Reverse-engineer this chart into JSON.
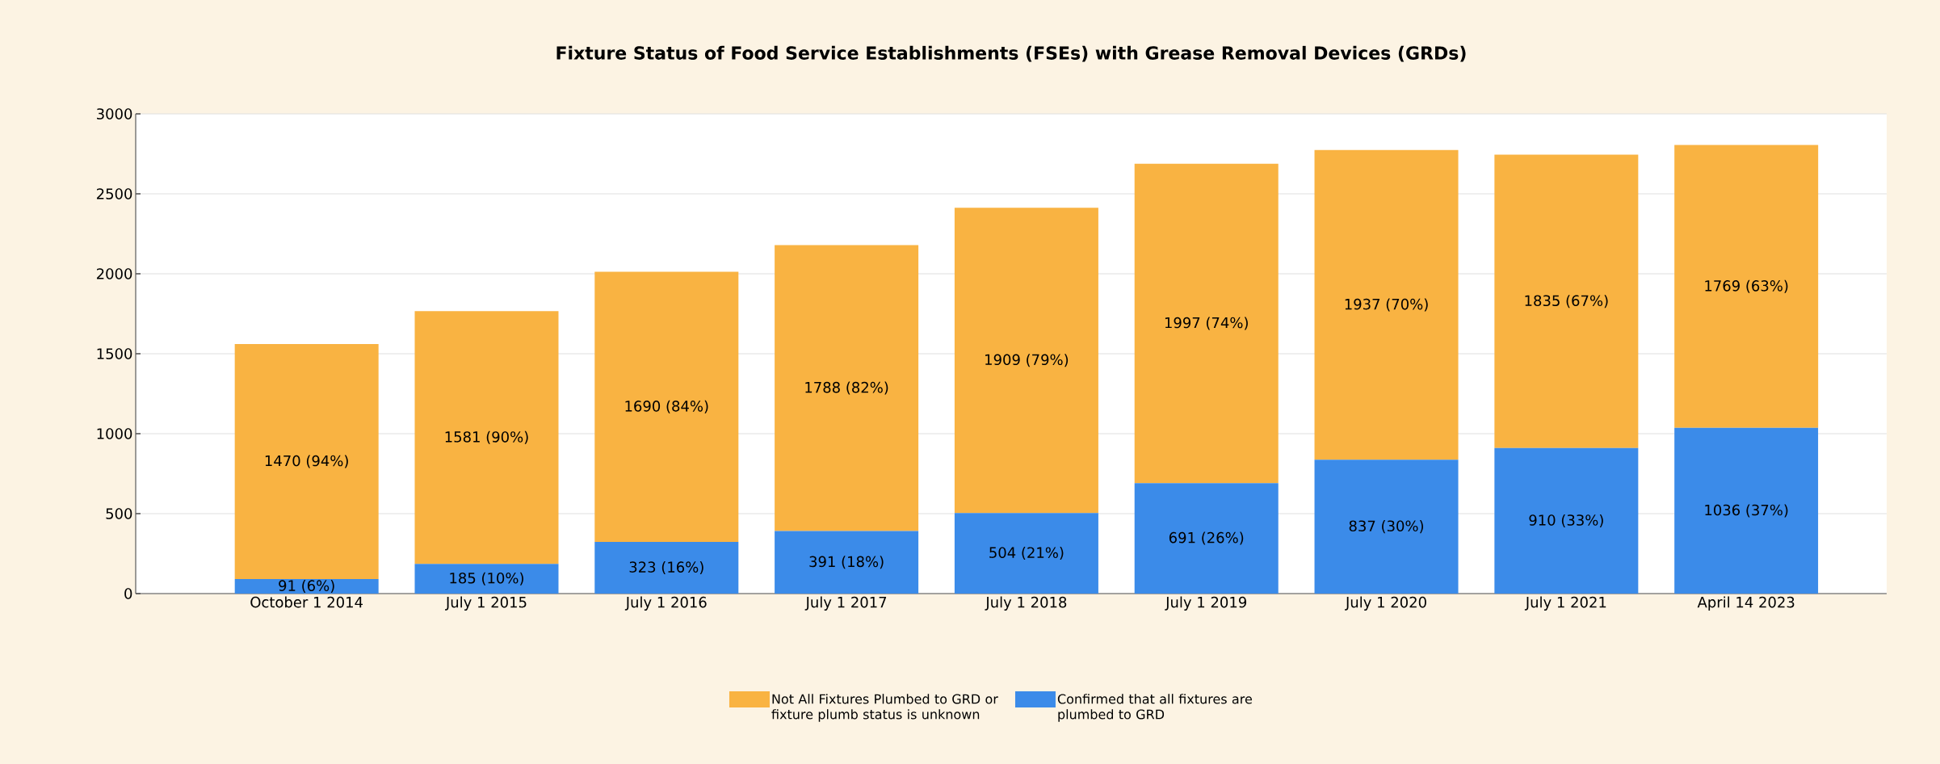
{
  "chart_data": {
    "type": "bar",
    "title": "Fixture Status of Food Service Establishments (FSEs) with Grease Removal Devices (GRDs)",
    "categories": [
      "October 1 2014",
      "July 1 2015",
      "July 1 2016",
      "July 1 2017",
      "July 1 2018",
      "July 1 2019",
      "July 1 2020",
      "July 1 2021",
      "April 14 2023"
    ],
    "stacked": true,
    "series": [
      {
        "name": "Confirmed that all fixtures are plumbed to GRD",
        "color": "#3b8be9",
        "values": [
          91,
          185,
          323,
          391,
          504,
          691,
          837,
          910,
          1036
        ],
        "value_labels": [
          "91 (6%)",
          "185 (10%)",
          "323 (16%)",
          "391 (18%)",
          "504 (21%)",
          "691 (26%)",
          "837 (30%)",
          "910 (33%)",
          "1036 (37%)"
        ]
      },
      {
        "name": "Not All Fixtures Plumbed to GRD or fixture plumb status is unknown",
        "color": "#f9b342",
        "values": [
          1470,
          1581,
          1690,
          1788,
          1909,
          1997,
          1937,
          1835,
          1769
        ],
        "value_labels": [
          "1470 (94%)",
          "1581 (90%)",
          "1690 (84%)",
          "1788 (82%)",
          "1909 (79%)",
          "1997 (74%)",
          "1937 (70%)",
          "1835 (67%)",
          "1769 (63%)"
        ]
      }
    ],
    "ylim": [
      0,
      3000
    ],
    "yticks": [
      0,
      500,
      1000,
      1500,
      2000,
      2500,
      3000
    ],
    "grid": "y",
    "legend": "bottom"
  }
}
